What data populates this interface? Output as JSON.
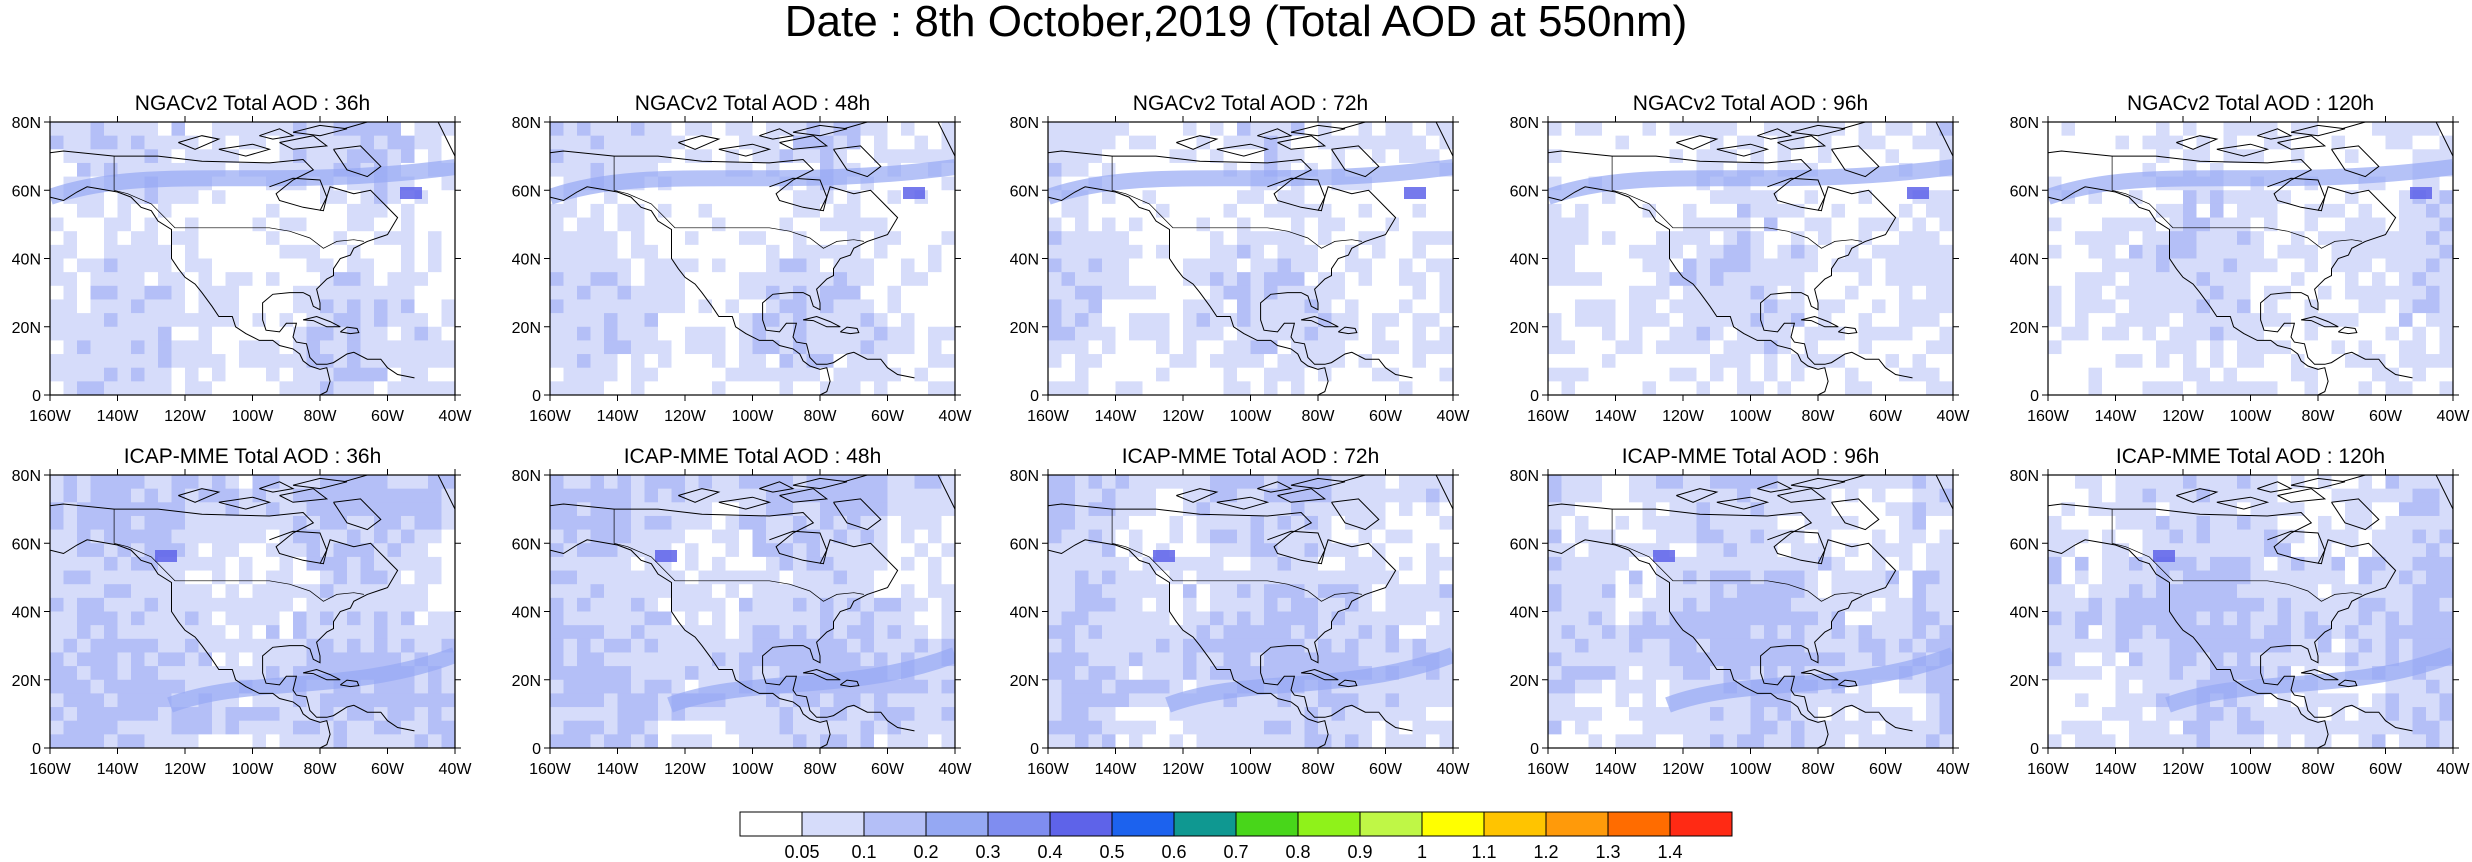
{
  "title": "Date : 8th October,2019 (Total AOD at 550nm)",
  "lat_ticks": [
    "80N",
    "60N",
    "40N",
    "20N",
    "0"
  ],
  "lon_ticks": [
    "160W",
    "140W",
    "120W",
    "100W",
    "80W",
    "60W",
    "40W"
  ],
  "rows": [
    {
      "model": "NGACv2",
      "panels": [
        {
          "title": "NGACv2 Total AOD : 36h"
        },
        {
          "title": "NGACv2 Total AOD : 48h"
        },
        {
          "title": "NGACv2 Total AOD : 72h"
        },
        {
          "title": "NGACv2 Total AOD : 96h"
        },
        {
          "title": "NGACv2 Total AOD : 120h"
        }
      ]
    },
    {
      "model": "ICAP-MME",
      "panels": [
        {
          "title": "ICAP-MME Total AOD : 36h"
        },
        {
          "title": "ICAP-MME Total AOD : 48h"
        },
        {
          "title": "ICAP-MME Total AOD : 72h"
        },
        {
          "title": "ICAP-MME Total AOD : 96h"
        },
        {
          "title": "ICAP-MME Total AOD : 120h"
        }
      ]
    }
  ],
  "colorbar": {
    "labels": [
      "0.05",
      "0.1",
      "0.2",
      "0.3",
      "0.4",
      "0.5",
      "0.6",
      "0.7",
      "0.8",
      "0.9",
      "1",
      "1.1",
      "1.2",
      "1.3",
      "1.4"
    ],
    "colors": [
      "#ffffff",
      "#d6dcfa",
      "#b4bff7",
      "#95a8f3",
      "#7f8df0",
      "#5e63e9",
      "#1c62ee",
      "#0f9891",
      "#48d61a",
      "#8ff21a",
      "#bff746",
      "#ffff00",
      "#ffc400",
      "#ff9a0a",
      "#ff6c00",
      "#ff2a14"
    ]
  }
}
